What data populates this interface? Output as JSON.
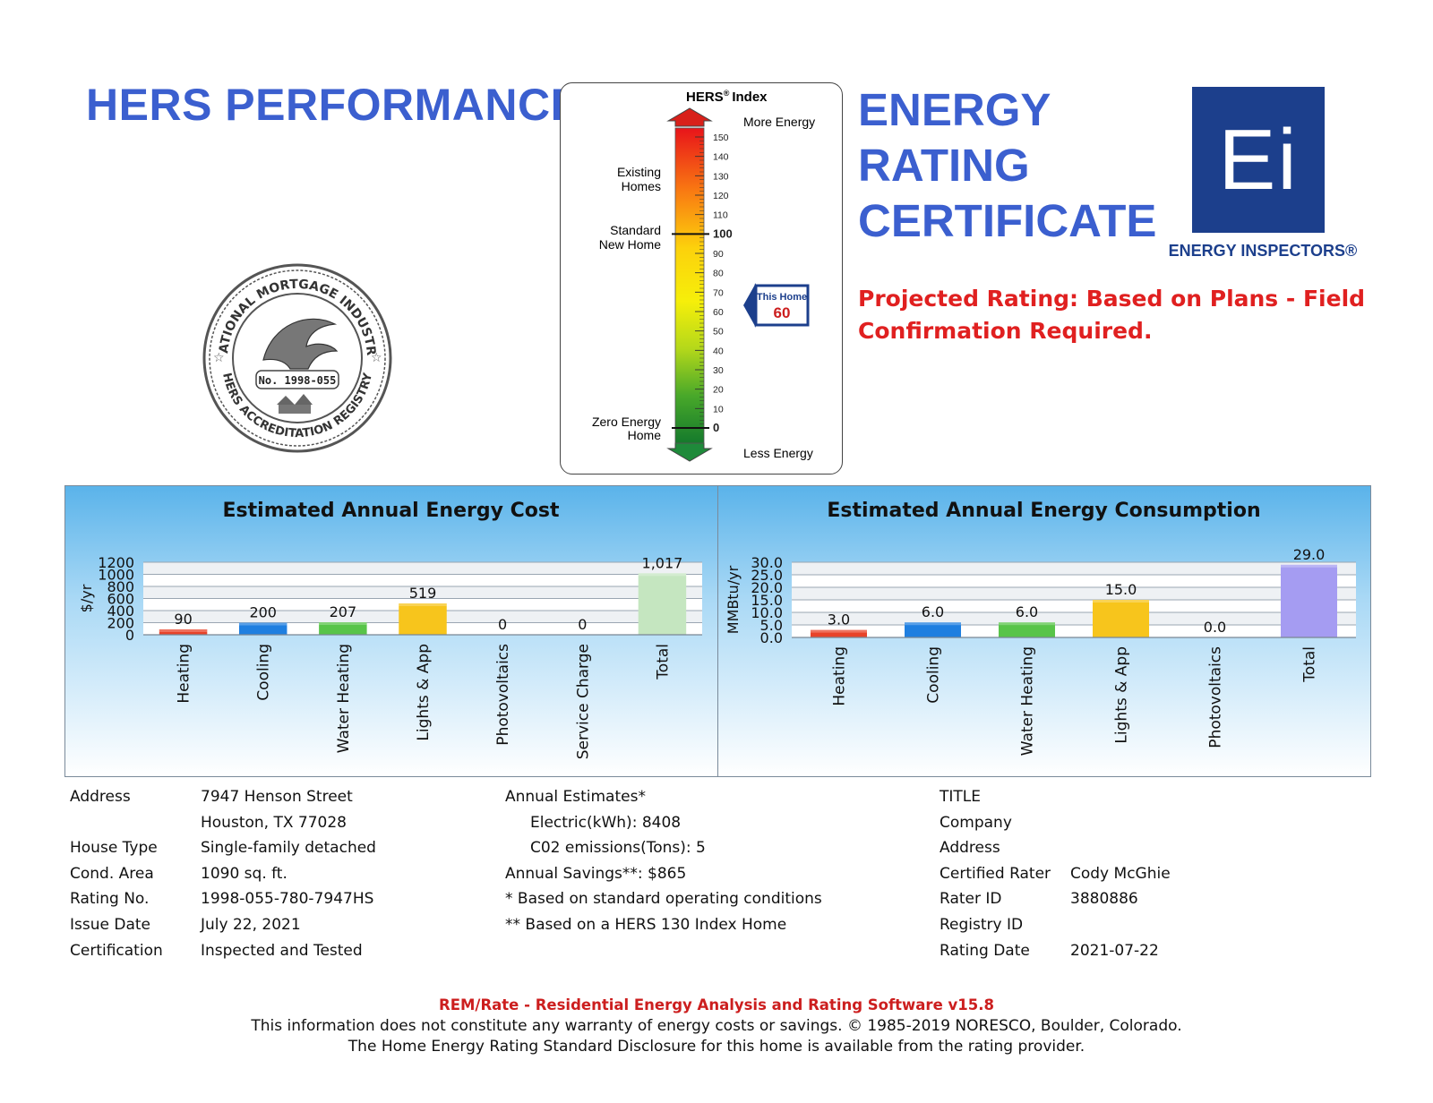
{
  "header": {
    "title": "HERS PERFORMANCE",
    "cert_line1": "ENERGY",
    "cert_line2": "RATING",
    "cert_line3": "CERTIFICATE",
    "projected": "Projected Rating: Based on Plans - Field Confirmation Required."
  },
  "logo": {
    "letters": "Ei",
    "label": "ENERGY INSPECTORS®"
  },
  "seal": {
    "top_text": "NATIONAL MORTGAGE INDUSTRY",
    "bottom_text": "HERS ACCREDITATION REGISTRY",
    "number": "No. 1998-055"
  },
  "hers_index": {
    "title": "HERS",
    "title_suffix": "Index",
    "more_energy": "More Energy",
    "less_energy": "Less Energy",
    "existing_homes_1": "Existing",
    "existing_homes_2": "Homes",
    "standard_new_1": "Standard",
    "standard_new_2": "New Home",
    "zero_energy_1": "Zero Energy",
    "zero_energy_2": "Home",
    "scale_labels": [
      "150",
      "140",
      "130",
      "120",
      "110",
      "100",
      "90",
      "80",
      "70",
      "60",
      "50",
      "40",
      "30",
      "20",
      "10",
      "0"
    ],
    "this_home_label": "This Home",
    "this_home_value": "60",
    "rating_value": 60
  },
  "cost_chart": {
    "title": "Estimated Annual Energy Cost",
    "ylabel": "$/yr"
  },
  "consumption_chart": {
    "title": "Estimated Annual Energy Consumption",
    "ylabel": "MMBtu/yr"
  },
  "chart_data": [
    {
      "type": "bar",
      "title": "Estimated Annual Energy Cost",
      "ylabel": "$/yr",
      "ylim": [
        0,
        1200
      ],
      "yticks": [
        "1200",
        "1000",
        "800",
        "600",
        "400",
        "200",
        "0"
      ],
      "categories": [
        "Heating",
        "Cooling",
        "Water Heating",
        "Lights & App",
        "Photovoltaics",
        "Service Charge",
        "Total"
      ],
      "values": [
        90,
        200,
        207,
        519,
        0,
        0,
        1017
      ],
      "labels": [
        "90",
        "200",
        "207",
        "519",
        "0",
        "0",
        "1,017"
      ],
      "colors": [
        "#e8432a",
        "#1f7fe0",
        "#58c449",
        "#f7c51c",
        "#999999",
        "#999999",
        "#c5e6c0"
      ]
    },
    {
      "type": "bar",
      "title": "Estimated Annual Energy Consumption",
      "ylabel": "MMBtu/yr",
      "ylim": [
        0,
        30
      ],
      "yticks": [
        "30.0",
        "25.0",
        "20.0",
        "15.0",
        "10.0",
        "5.0",
        "0.0"
      ],
      "categories": [
        "Heating",
        "Cooling",
        "Water Heating",
        "Lights & App",
        "Photovoltaics",
        "Total"
      ],
      "values": [
        3.0,
        6.0,
        6.0,
        15.0,
        0.0,
        29.0
      ],
      "labels": [
        "3.0",
        "6.0",
        "6.0",
        "15.0",
        "0.0",
        "29.0"
      ],
      "colors": [
        "#e8432a",
        "#1f7fe0",
        "#58c449",
        "#f7c51c",
        "#999999",
        "#a59cf2"
      ]
    }
  ],
  "info": {
    "left_labels": [
      "Address",
      "",
      "House Type",
      "Cond. Area",
      "Rating No.",
      "Issue Date",
      "Certification"
    ],
    "left_values": [
      "7947 Henson Street",
      "Houston, TX 77028",
      "Single-family detached",
      "1090 sq. ft.",
      "1998-055-780-7947HS",
      "July 22, 2021",
      "Inspected and Tested"
    ],
    "annual_estimates": "Annual Estimates*",
    "electric": "Electric(kWh):  8408",
    "co2": "C02 emissions(Tons): 5",
    "savings": "Annual Savings**:  $865",
    "note1": "* Based on standard operating conditions",
    "note2": "** Based on a HERS 130 Index Home",
    "right_labels": [
      "TITLE",
      "Company",
      "Address",
      "Certified Rater",
      "Rater ID",
      "Registry ID",
      "Rating Date"
    ],
    "right_values": [
      "",
      "",
      "",
      "Cody McGhie",
      "3880886",
      "",
      "2021-07-22"
    ]
  },
  "footer": {
    "software": "REM/Rate - Residential Energy Analysis and Rating Software v15.8",
    "disclaimer": "This information does not constitute any warranty of energy costs or savings. © 1985-2019 NORESCO, Boulder, Colorado.",
    "disclosure": "The Home Energy Rating Standard Disclosure for this home is available from the rating provider."
  }
}
